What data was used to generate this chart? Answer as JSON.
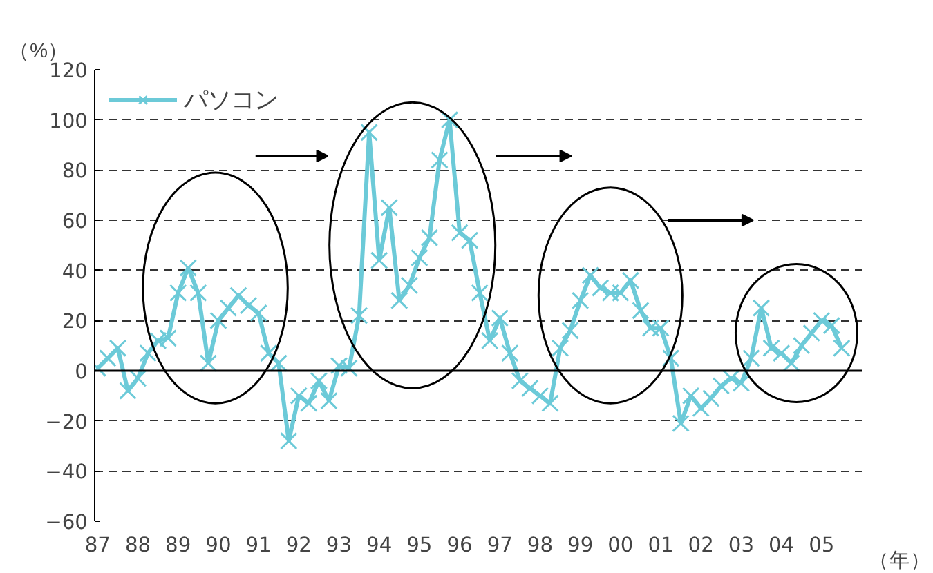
{
  "chart_data": {
    "type": "line",
    "ylabel": "（%）",
    "xlabel": "（年）",
    "categories": [
      "87",
      null,
      null,
      null,
      "88",
      null,
      null,
      null,
      "89",
      null,
      null,
      null,
      "90",
      null,
      null,
      null,
      "91",
      null,
      null,
      null,
      "92",
      null,
      null,
      null,
      "93",
      null,
      null,
      null,
      "94",
      null,
      null,
      null,
      "95",
      null,
      null,
      null,
      "96",
      null,
      null,
      null,
      "97",
      null,
      null,
      null,
      "98",
      null,
      null,
      null,
      "99",
      null,
      null,
      null,
      "00",
      null,
      null,
      null,
      "01",
      null,
      null,
      null,
      "02",
      null,
      null,
      null,
      "03",
      null,
      null,
      null,
      "04",
      null,
      null,
      null,
      "05",
      null,
      null
    ],
    "series": [
      {
        "name": "パソコン",
        "color": "#6ccad8",
        "values": [
          1,
          5,
          9,
          -8,
          -3,
          7,
          12,
          13,
          31,
          41,
          31,
          3,
          20,
          25,
          30,
          26,
          23,
          7,
          3,
          -28,
          -10,
          -13,
          -4,
          -12,
          2,
          1,
          22,
          95,
          44,
          65,
          28,
          34,
          45,
          53,
          84,
          100,
          55,
          52,
          31,
          12,
          21,
          7,
          -4,
          -7,
          -10,
          -13,
          9,
          16,
          28,
          38,
          33,
          31,
          31,
          36,
          24,
          17,
          17,
          5,
          -21,
          -10,
          -15,
          -11,
          -6,
          -3,
          -5,
          5,
          25,
          9,
          7,
          3,
          10,
          15,
          20,
          18,
          9
        ]
      }
    ],
    "ylim": [
      -60,
      120
    ],
    "yticks": [
      -60,
      -40,
      -20,
      0,
      20,
      40,
      60,
      80,
      100,
      120
    ],
    "grid": "y",
    "legend": "top left",
    "marker": "cross",
    "line_style": "solid"
  }
}
